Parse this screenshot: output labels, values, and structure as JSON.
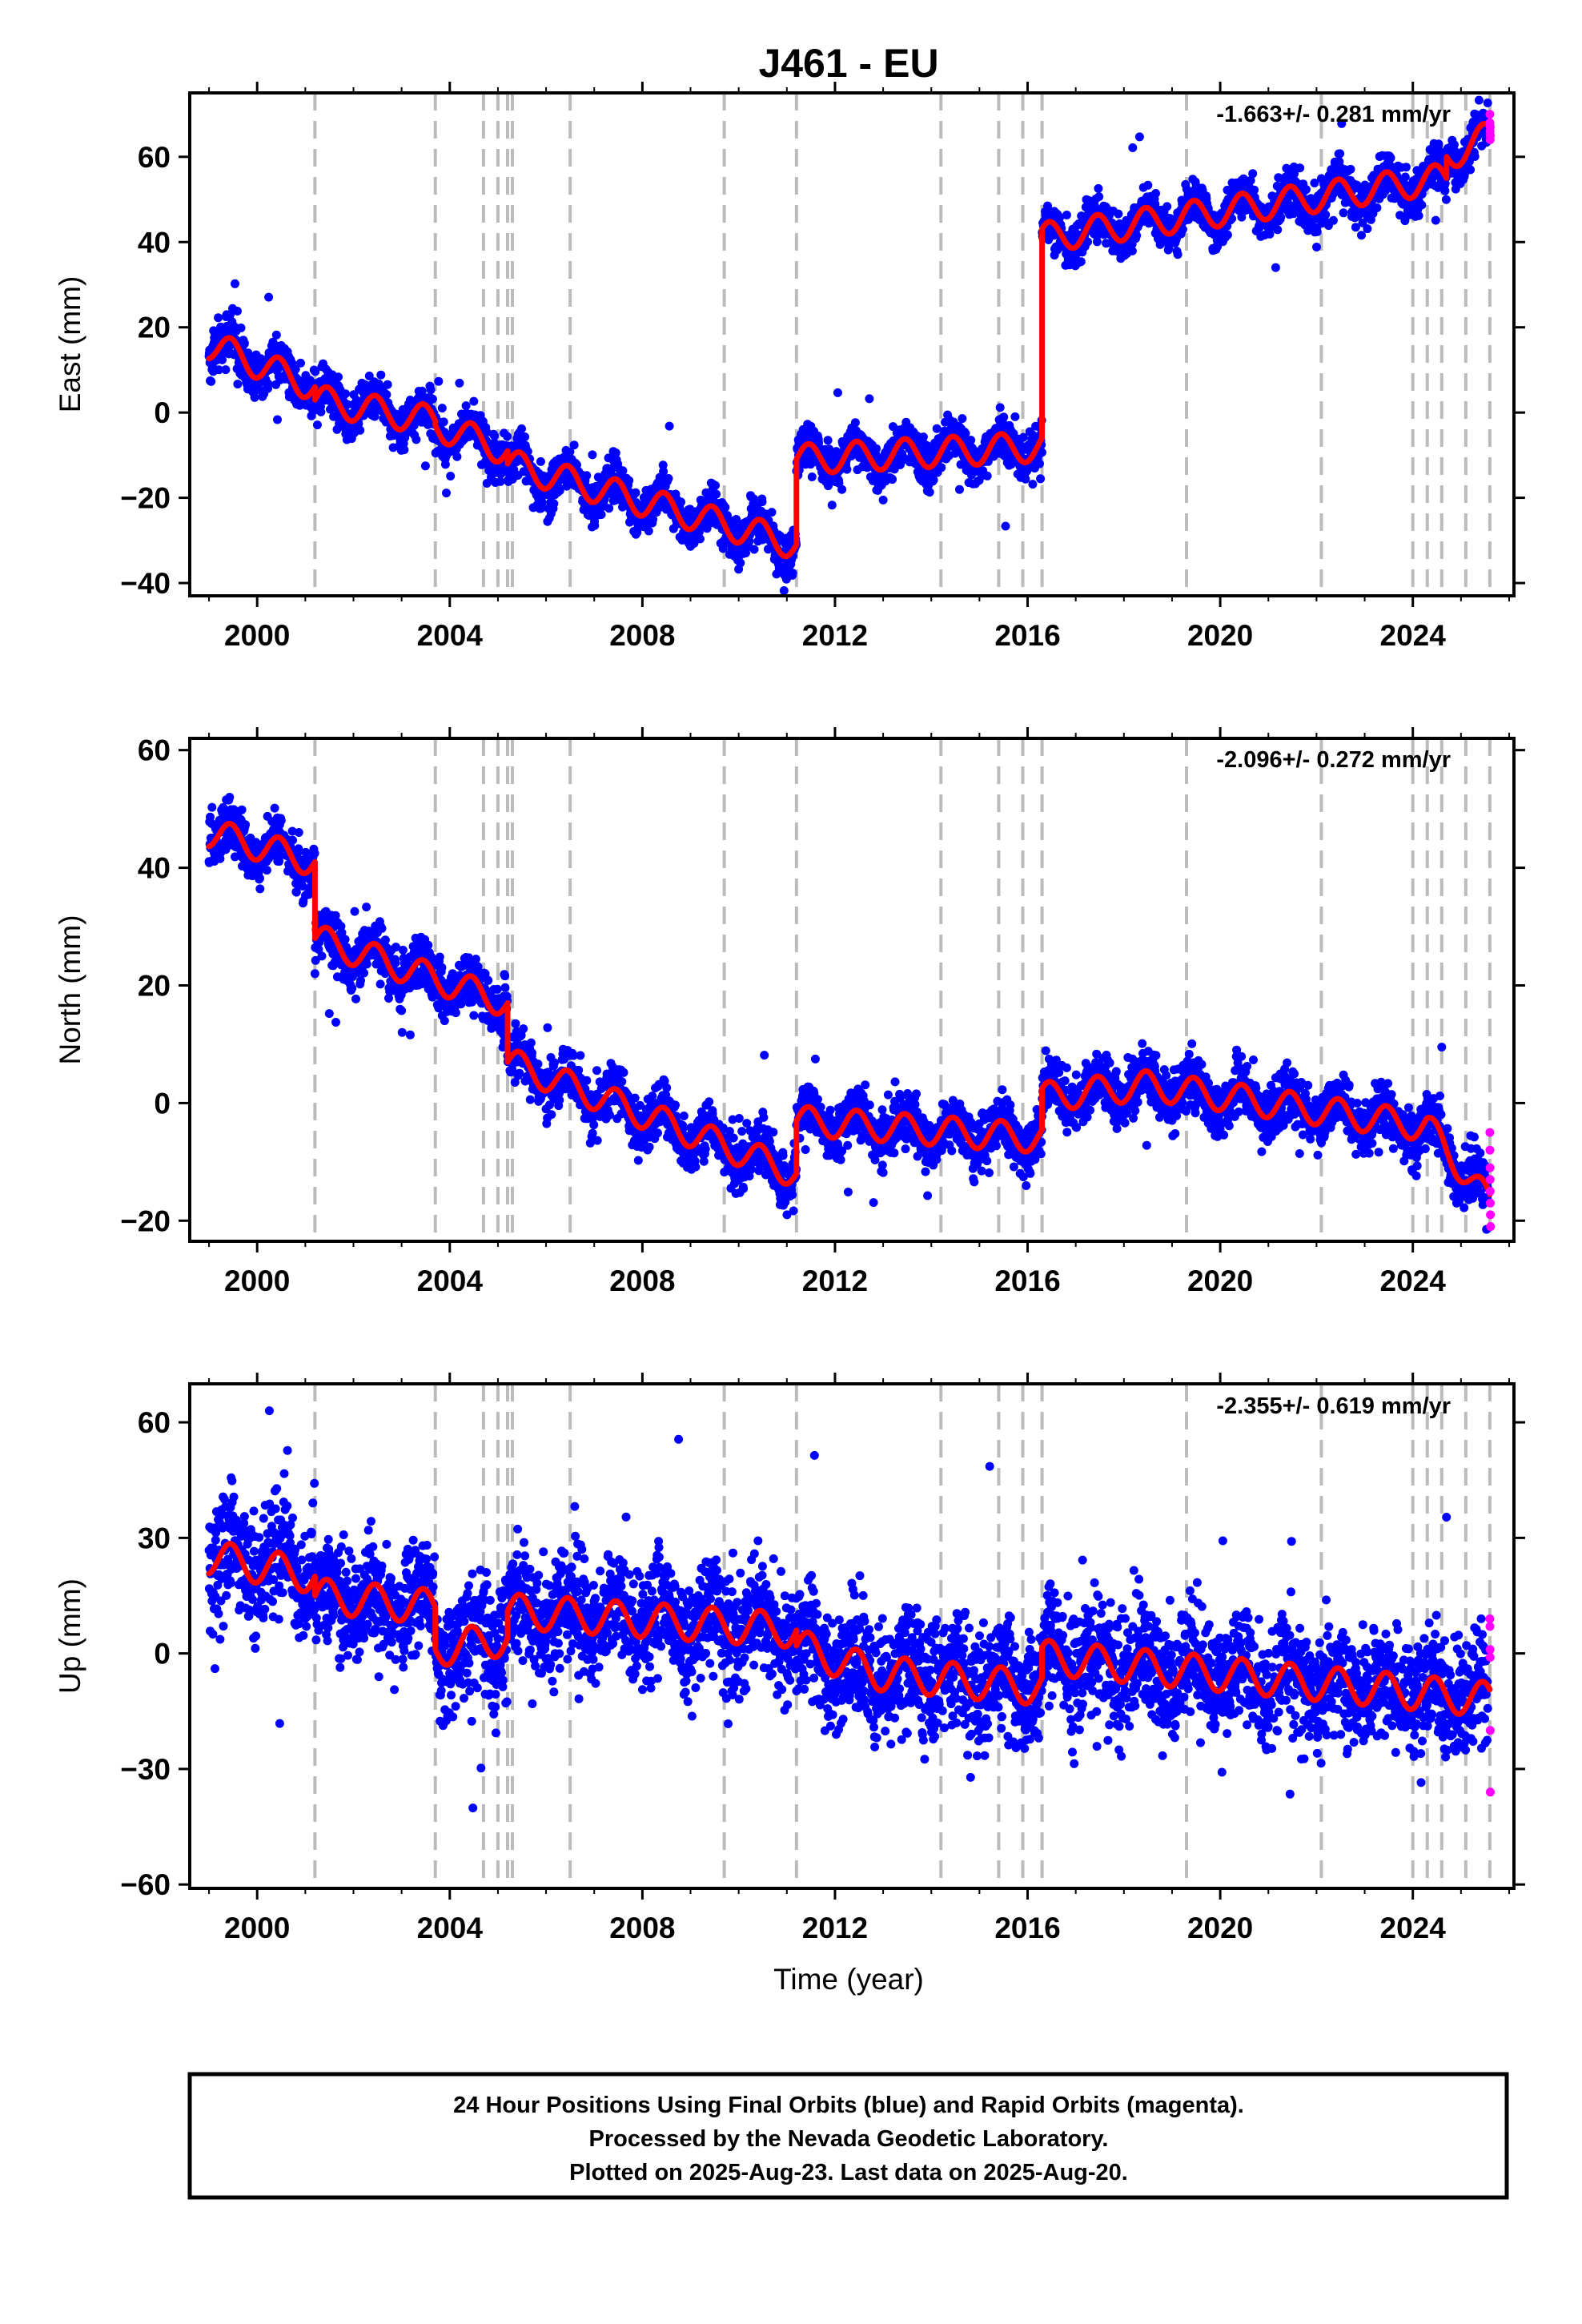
{
  "title": "J461 - EU",
  "xlabel": "Time (year)",
  "caption": [
    "24 Hour Positions Using Final Orbits (blue) and Rapid Orbits (magenta).",
    "Processed by the Nevada Geodetic Laboratory.",
    "Plotted on 2025-Aug-23. Last data on 2025-Aug-20."
  ],
  "colors": {
    "final": "#0000ff",
    "rapid": "#ff00ff",
    "model": "#ff0000",
    "event": "#bbbbbb"
  },
  "chart_data": [
    {
      "type": "scatter",
      "ylabel": "East (mm)",
      "rate": "-1.663+/- 0.281 mm/yr",
      "xlim": [
        1998.6,
        2026.1
      ],
      "ylim": [
        -43,
        75
      ],
      "xticks": [
        2000,
        2004,
        2008,
        2012,
        2016,
        2020,
        2024
      ],
      "yticks": [
        -40,
        -20,
        0,
        20,
        40,
        60
      ],
      "event_lines": [
        2001.2,
        2003.7,
        2004.7,
        2005.0,
        2005.2,
        2005.3,
        2006.5,
        2009.7,
        2011.2,
        2014.2,
        2015.4,
        2015.9,
        2016.3,
        2019.3,
        2022.1,
        2024.0,
        2024.3,
        2024.6,
        2025.1,
        2025.6
      ],
      "model": {
        "breaks": [
          {
            "x": 1999.0,
            "y": 16.0
          },
          {
            "x": 2001.2,
            "y": 6.0,
            "jump": -3.0
          },
          {
            "x": 2003.7,
            "y": -2.0,
            "jump": -1.0
          },
          {
            "x": 2005.2,
            "y": -9.0,
            "jump": -3.0
          },
          {
            "x": 2011.2,
            "y": -31.0,
            "jump": 20.0
          },
          {
            "x": 2016.3,
            "y": -8.0,
            "jump": 49.0
          },
          {
            "x": 2024.7,
            "y": 55.0,
            "jump": 5.0
          },
          {
            "x": 2025.6,
            "y": 65.0
          }
        ],
        "annual_amplitude": 3.5,
        "noise_sd": 2.5
      },
      "rapid_points": [
        70,
        68,
        66,
        64,
        67,
        65
      ]
    },
    {
      "type": "scatter",
      "ylabel": "North (mm)",
      "rate": "-2.096+/- 0.272 mm/yr",
      "xlim": [
        1998.6,
        2026.1
      ],
      "ylim": [
        -23.5,
        62
      ],
      "xticks": [
        2000,
        2004,
        2008,
        2012,
        2016,
        2020,
        2024
      ],
      "yticks": [
        -20,
        0,
        20,
        40,
        60
      ],
      "event_lines": [
        2001.2,
        2003.7,
        2004.7,
        2005.0,
        2005.2,
        2005.3,
        2006.5,
        2009.7,
        2011.2,
        2014.2,
        2015.4,
        2015.9,
        2016.3,
        2019.3,
        2022.1,
        2024.0,
        2024.3,
        2024.6,
        2025.1,
        2025.6
      ],
      "model": {
        "breaks": [
          {
            "x": 1999.0,
            "y": 46.0
          },
          {
            "x": 2001.2,
            "y": 41.0,
            "jump": -13.0
          },
          {
            "x": 2005.2,
            "y": 17.0,
            "jump": -10.0
          },
          {
            "x": 2011.2,
            "y": -12.0,
            "jump": 9.0
          },
          {
            "x": 2016.3,
            "y": -6.0,
            "jump": 7.0
          },
          {
            "x": 2018.5,
            "y": 3.0
          },
          {
            "x": 2024.3,
            "y": -4.0
          },
          {
            "x": 2025.6,
            "y": -17.0
          }
        ],
        "annual_amplitude": 2.5,
        "noise_sd": 2.2
      },
      "rapid_points": [
        -5,
        -8,
        -11,
        -13,
        -15,
        -17,
        -19,
        -21
      ]
    },
    {
      "type": "scatter",
      "ylabel": "Up (mm)",
      "rate": "-2.355+/- 0.619 mm/yr",
      "xlim": [
        1998.6,
        2026.1
      ],
      "ylim": [
        -61,
        70
      ],
      "xticks": [
        2000,
        2004,
        2008,
        2012,
        2016,
        2020,
        2024
      ],
      "yticks": [
        -60,
        -30,
        0,
        30,
        60
      ],
      "event_lines": [
        2001.2,
        2003.7,
        2004.7,
        2005.0,
        2005.2,
        2005.3,
        2006.5,
        2009.7,
        2011.2,
        2014.2,
        2015.4,
        2015.9,
        2016.3,
        2019.3,
        2022.1,
        2024.0,
        2024.3,
        2024.6,
        2025.1,
        2025.6
      ],
      "model": {
        "breaks": [
          {
            "x": 1999.0,
            "y": 25.0
          },
          {
            "x": 2001.2,
            "y": 20.0,
            "jump": -5.0
          },
          {
            "x": 2003.7,
            "y": 12.0,
            "jump": -11.0
          },
          {
            "x": 2005.2,
            "y": 4.0,
            "jump": 7.0
          },
          {
            "x": 2011.2,
            "y": 6.0,
            "jump": -4.0
          },
          {
            "x": 2012.8,
            "y": -5.0
          },
          {
            "x": 2016.3,
            "y": -9.0,
            "jump": 8.0
          },
          {
            "x": 2025.6,
            "y": -12.0
          }
        ],
        "annual_amplitude": 4.5,
        "noise_sd": 7.5
      },
      "rapid_points": [
        9,
        7,
        1,
        -1,
        -20,
        -36
      ]
    }
  ]
}
